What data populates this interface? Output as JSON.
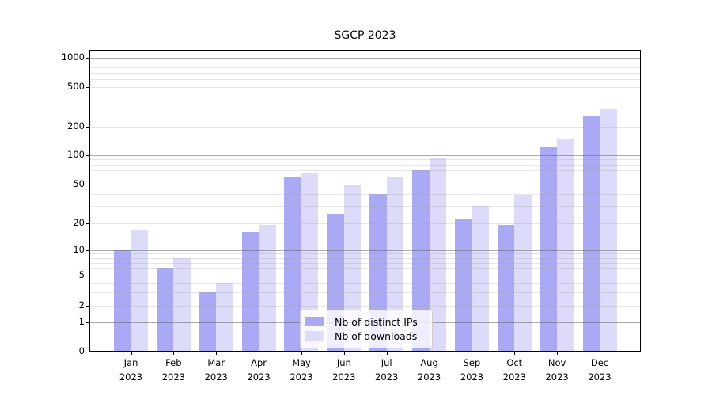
{
  "figure": {
    "title": "SGCP 2023"
  },
  "chart_data": {
    "type": "bar",
    "title": "SGCP 2023",
    "yscale": "symlog",
    "grid": true,
    "legend_position": "lower center",
    "y_tick_values": [
      0,
      1,
      2,
      5,
      10,
      20,
      50,
      100,
      200,
      500,
      1000
    ],
    "y_tick_labels": [
      "0",
      "1",
      "2",
      "5",
      "10",
      "20",
      "50",
      "100",
      "200",
      "500",
      "1000"
    ],
    "categories": [
      "Jan 2023",
      "Feb 2023",
      "Mar 2023",
      "Apr 2023",
      "May 2023",
      "Jun 2023",
      "Jul 2023",
      "Aug 2023",
      "Sep 2023",
      "Oct 2023",
      "Nov 2023",
      "Dec 2023"
    ],
    "series": [
      {
        "name": "Nb of distinct IPs",
        "color": "#a9a9f5",
        "values": [
          10,
          6,
          3,
          16,
          60,
          25,
          40,
          70,
          22,
          19,
          120,
          255
        ]
      },
      {
        "name": "Nb of downloads",
        "color": "#dcdcfa",
        "values": [
          17,
          8,
          4,
          19,
          65,
          50,
          60,
          93,
          30,
          39,
          145,
          300
        ]
      }
    ]
  }
}
